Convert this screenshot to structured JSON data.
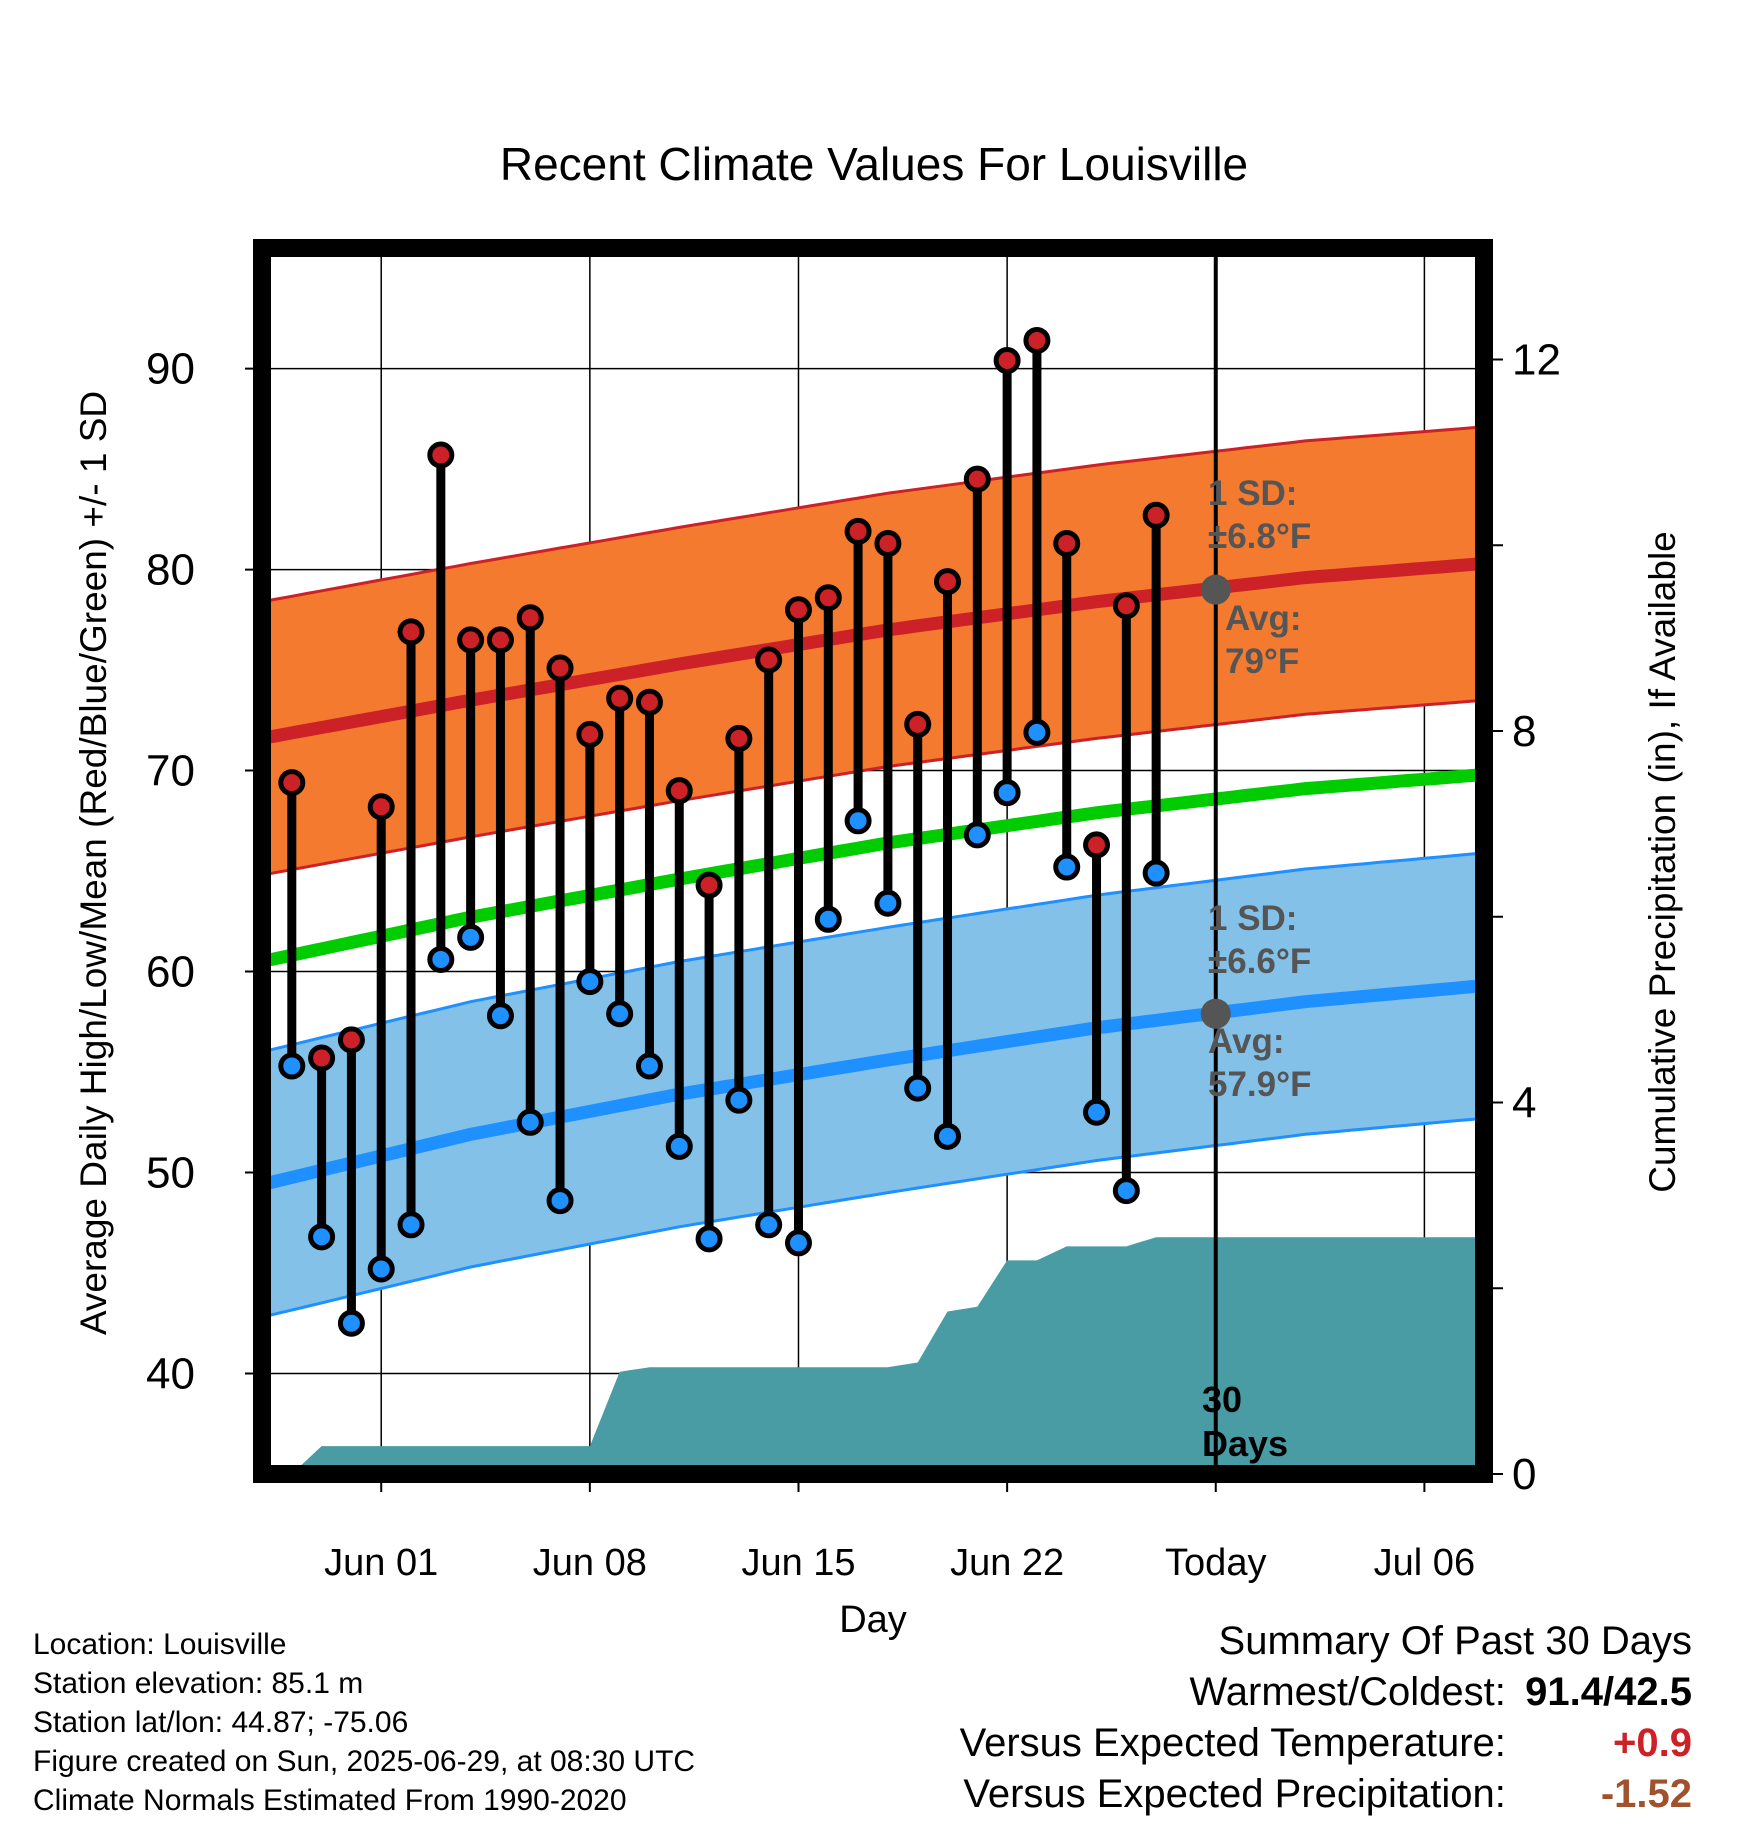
{
  "chart_data": {
    "type": "line",
    "title": "Recent Climate Values For Louisville",
    "xlabel": "Day",
    "ylabel": "Average Daily High/Low/Mean (Red/Blue/Green) +/- 1 SD",
    "y2label": "Cumulative Precipitation (in), If Available",
    "x_ticks": [
      "Jun 01",
      "Jun 08",
      "Jun 15",
      "Jun 22",
      "Today",
      "Jul 06"
    ],
    "xlim": [
      "2025-05-28",
      "2025-07-08"
    ],
    "ylim": [
      35,
      96
    ],
    "y_ticks": [
      40,
      50,
      60,
      70,
      80,
      90
    ],
    "y2lim": [
      0,
      13.2
    ],
    "y2_ticks": [
      0,
      4,
      8,
      12
    ],
    "today": "2025-06-29",
    "grid": true,
    "series": [
      {
        "name": "Observed High",
        "color": "#cc2127",
        "x": [
          "2025-05-29",
          "2025-05-30",
          "2025-05-31",
          "2025-06-01",
          "2025-06-02",
          "2025-06-03",
          "2025-06-04",
          "2025-06-05",
          "2025-06-06",
          "2025-06-07",
          "2025-06-08",
          "2025-06-09",
          "2025-06-10",
          "2025-06-11",
          "2025-06-12",
          "2025-06-13",
          "2025-06-14",
          "2025-06-15",
          "2025-06-16",
          "2025-06-17",
          "2025-06-18",
          "2025-06-19",
          "2025-06-20",
          "2025-06-21",
          "2025-06-22",
          "2025-06-23",
          "2025-06-24",
          "2025-06-25",
          "2025-06-26",
          "2025-06-27",
          "2025-06-28"
        ],
        "values": [
          69.4,
          55.7,
          56.6,
          68.2,
          76.9,
          85.7,
          76.5,
          76.5,
          77.6,
          75.1,
          71.8,
          73.6,
          73.4,
          69.0,
          64.3,
          71.6,
          75.5,
          78.0,
          78.6,
          81.9,
          81.3,
          72.3,
          79.4,
          84.5,
          90.4,
          91.4,
          81.3,
          66.3,
          78.2,
          82.7,
          null
        ]
      },
      {
        "name": "Observed Low",
        "color": "#1e90ff",
        "x": [
          "2025-05-29",
          "2025-05-30",
          "2025-05-31",
          "2025-06-01",
          "2025-06-02",
          "2025-06-03",
          "2025-06-04",
          "2025-06-05",
          "2025-06-06",
          "2025-06-07",
          "2025-06-08",
          "2025-06-09",
          "2025-06-10",
          "2025-06-11",
          "2025-06-12",
          "2025-06-13",
          "2025-06-14",
          "2025-06-15",
          "2025-06-16",
          "2025-06-17",
          "2025-06-18",
          "2025-06-19",
          "2025-06-20",
          "2025-06-21",
          "2025-06-22",
          "2025-06-23",
          "2025-06-24",
          "2025-06-25",
          "2025-06-26",
          "2025-06-27",
          "2025-06-28"
        ],
        "values": [
          55.3,
          46.8,
          42.5,
          45.2,
          47.4,
          60.6,
          61.7,
          57.8,
          52.5,
          48.6,
          59.5,
          57.9,
          55.3,
          51.3,
          46.7,
          53.6,
          47.4,
          46.5,
          62.6,
          67.5,
          63.4,
          54.2,
          51.8,
          66.8,
          68.9,
          71.9,
          65.2,
          53.0,
          49.1,
          64.9,
          null
        ]
      },
      {
        "name": "Normal High",
        "color": "#cc2127",
        "x": [
          "2025-05-28",
          "2025-06-04",
          "2025-06-11",
          "2025-06-18",
          "2025-06-25",
          "2025-07-02",
          "2025-07-08"
        ],
        "values": [
          71.6,
          73.5,
          75.3,
          77.0,
          78.4,
          79.6,
          80.3
        ],
        "band_sd": 6.8
      },
      {
        "name": "Normal Mean",
        "color": "#00cc00",
        "x": [
          "2025-05-28",
          "2025-06-04",
          "2025-06-11",
          "2025-06-18",
          "2025-06-25",
          "2025-07-02",
          "2025-07-08"
        ],
        "values": [
          60.5,
          62.7,
          64.6,
          66.4,
          67.9,
          69.1,
          69.8
        ]
      },
      {
        "name": "Normal Low",
        "color": "#1e90ff",
        "x": [
          "2025-05-28",
          "2025-06-04",
          "2025-06-11",
          "2025-06-18",
          "2025-06-25",
          "2025-07-02",
          "2025-07-08"
        ],
        "values": [
          49.4,
          51.9,
          53.9,
          55.6,
          57.2,
          58.5,
          59.3
        ],
        "band_sd": 6.6
      },
      {
        "name": "Cumulative Precipitation",
        "color": "#4a9ca4",
        "axis": "y2",
        "x": [
          "2025-05-29",
          "2025-05-30",
          "2025-06-07",
          "2025-06-08",
          "2025-06-09",
          "2025-06-10",
          "2025-06-18",
          "2025-06-19",
          "2025-06-20",
          "2025-06-21",
          "2025-06-22",
          "2025-06-23",
          "2025-06-24",
          "2025-06-26",
          "2025-06-27",
          "2025-07-08"
        ],
        "values": [
          0.0,
          0.3,
          0.3,
          0.3,
          1.1,
          1.15,
          1.15,
          1.2,
          1.75,
          1.8,
          2.3,
          2.3,
          2.45,
          2.45,
          2.55,
          2.55
        ]
      }
    ],
    "annotations": {
      "high_sd": "1 SD:",
      "high_sd_value": "±6.8°F",
      "high_avg": "Avg:",
      "high_avg_value": "79°F",
      "low_sd": "1 SD:",
      "low_sd_value": "±6.6°F",
      "low_avg": "Avg:",
      "low_avg_value": "57.9°F",
      "today_avg_high": 79,
      "today_avg_low": 57.9,
      "precip_days_1": "30",
      "precip_days_2": "Days"
    }
  },
  "info": {
    "location": "Location: Louisville",
    "elevation": "Station elevation: 85.1 m",
    "latlon": "Station lat/lon: 44.87; -75.06",
    "created": "Figure created on Sun, 2025-06-29, at 08:30 UTC",
    "normals": "Climate Normals Estimated From 1990-2020"
  },
  "summary": {
    "title": "Summary Of Past 30 Days",
    "warm_cold_label": "Warmest/Coldest:",
    "warm_cold_value": "91.4/42.5",
    "temp_label": "Versus Expected Temperature:",
    "temp_value": "+0.9",
    "precip_label": "Versus Expected Precipitation:",
    "precip_value": "-1.52"
  },
  "colors": {
    "high_band": "#f47a30",
    "high_line": "#cc2127",
    "low_band": "#84c1e8",
    "low_line": "#1e90ff",
    "mean_line": "#00cc00",
    "precip_fill": "#4a9ca4"
  }
}
